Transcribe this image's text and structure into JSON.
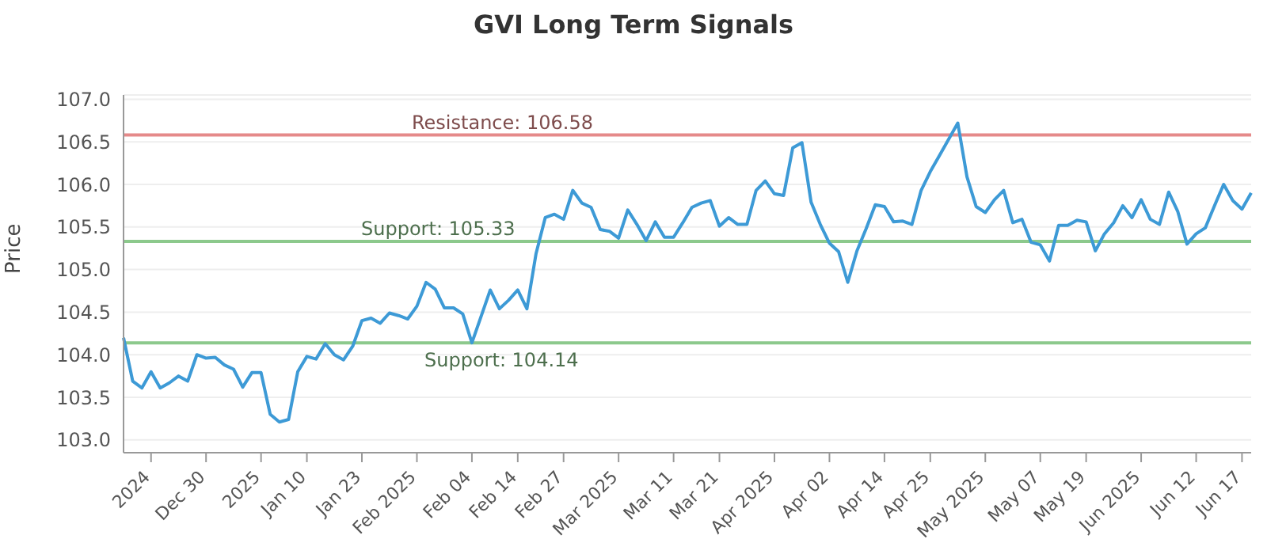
{
  "chart_data": {
    "type": "line",
    "title": "GVI Long Term Signals",
    "ylabel": "Price",
    "categories": [
      null,
      null,
      null,
      "2024",
      null,
      null,
      null,
      null,
      null,
      "Dec 30",
      null,
      null,
      null,
      null,
      null,
      "2025",
      null,
      null,
      null,
      null,
      "Jan 10",
      null,
      null,
      null,
      null,
      null,
      "Jan 23",
      null,
      null,
      null,
      null,
      null,
      "Feb 2025",
      null,
      null,
      null,
      null,
      null,
      "Feb 04",
      null,
      null,
      null,
      null,
      "Feb 14",
      null,
      null,
      null,
      null,
      "Feb 27",
      null,
      null,
      null,
      null,
      null,
      "Mar 2025",
      null,
      null,
      null,
      null,
      null,
      "Mar 11",
      null,
      null,
      null,
      null,
      "Mar 21",
      null,
      null,
      null,
      null,
      null,
      "Apr 2025",
      null,
      null,
      null,
      null,
      null,
      "Apr 02",
      null,
      null,
      null,
      null,
      null,
      "Apr 14",
      null,
      null,
      null,
      null,
      "Apr 25",
      null,
      null,
      null,
      null,
      null,
      "May 2025",
      null,
      null,
      null,
      null,
      null,
      "May 07",
      null,
      null,
      null,
      null,
      "May 19",
      null,
      null,
      null,
      null,
      null,
      "Jun 2025",
      null,
      null,
      null,
      null,
      null,
      "Jun 12",
      null,
      null,
      null,
      null,
      "Jun 17",
      null
    ],
    "series": [
      {
        "color": "#3d9ad6",
        "values": [
          104.2,
          103.69,
          103.61,
          103.8,
          103.61,
          103.67,
          103.75,
          103.69,
          104.0,
          103.96,
          103.97,
          103.88,
          103.83,
          103.62,
          103.79,
          103.79,
          103.3,
          103.21,
          103.24,
          103.8,
          103.98,
          103.95,
          104.13,
          104.0,
          103.94,
          104.1,
          104.4,
          104.43,
          104.37,
          104.49,
          104.46,
          104.42,
          104.57,
          104.85,
          104.77,
          104.55,
          104.55,
          104.48,
          104.14,
          104.45,
          104.76,
          104.54,
          104.64,
          104.76,
          104.54,
          105.19,
          105.61,
          105.65,
          105.59,
          105.93,
          105.78,
          105.73,
          105.47,
          105.45,
          105.37,
          105.7,
          105.53,
          105.34,
          105.56,
          105.38,
          105.38,
          105.55,
          105.73,
          105.78,
          105.81,
          105.51,
          105.61,
          105.53,
          105.53,
          105.93,
          106.04,
          105.89,
          105.87,
          106.43,
          106.49,
          105.79,
          105.53,
          105.31,
          105.21,
          104.85,
          105.22,
          105.48,
          105.76,
          105.74,
          105.56,
          105.57,
          105.53,
          105.93,
          106.15,
          106.34,
          106.53,
          106.72,
          106.09,
          105.74,
          105.67,
          105.82,
          105.93,
          105.55,
          105.59,
          105.32,
          105.29,
          105.1,
          105.52,
          105.52,
          105.58,
          105.56,
          105.22,
          105.42,
          105.55,
          105.75,
          105.61,
          105.82,
          105.59,
          105.53,
          105.91,
          105.68,
          105.3,
          105.42,
          105.49,
          105.75,
          106.0,
          105.81,
          105.71,
          105.9
        ]
      }
    ],
    "ylim": [
      102.85,
      107.05
    ],
    "yticks": [
      {
        "value": 103,
        "label": "103.0"
      },
      {
        "value": 103.5,
        "label": "103.5"
      },
      {
        "value": 104,
        "label": "104.0"
      },
      {
        "value": 104.5,
        "label": "104.5"
      },
      {
        "value": 105,
        "label": "105.0"
      },
      {
        "value": 105.5,
        "label": "105.5"
      },
      {
        "value": 106,
        "label": "106.0"
      },
      {
        "value": 106.5,
        "label": "106.5"
      },
      {
        "value": 107,
        "label": "107.0"
      }
    ],
    "ref_lines": [
      {
        "axis": "y",
        "value": 106.58,
        "label": "Resistance: 106.58",
        "color": "#e58a8a"
      },
      {
        "axis": "y",
        "value": 105.33,
        "label": "Support: 105.33",
        "color": "#8cc98c"
      },
      {
        "axis": "y",
        "value": 104.14,
        "label": "Support: 104.14",
        "color": "#8cc98c"
      }
    ],
    "grid": "y",
    "legend": false,
    "marker": "none",
    "line_style": "solid"
  }
}
